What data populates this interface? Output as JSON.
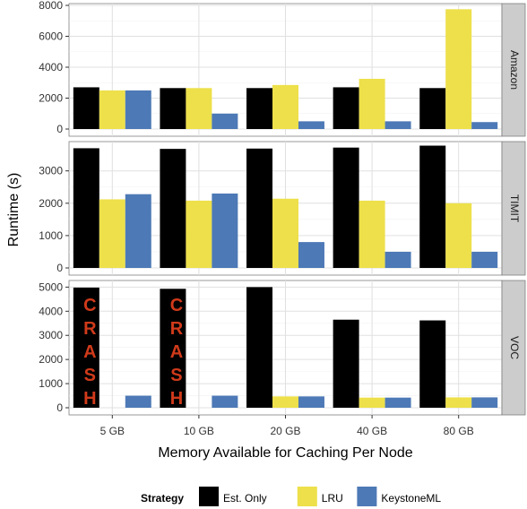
{
  "chart_data": {
    "type": "bar",
    "facet": "vertical",
    "xlabel": "Memory Available for Caching Per Node",
    "ylabel": "Runtime (s)",
    "categories": [
      "5 GB",
      "10 GB",
      "20 GB",
      "40 GB",
      "80 GB"
    ],
    "legend": {
      "title": "Strategy",
      "position": "bottom",
      "entries": [
        "Est. Only",
        "LRU",
        "KeystoneML"
      ]
    },
    "colors": {
      "Est. Only": "#000000",
      "LRU": "#ede04a",
      "KeystoneML": "#4d79b6",
      "panel_bg": "#ffffff",
      "strip_bg": "#cccccc",
      "grid": "#e0e0e0",
      "crash": "#d03a1a"
    },
    "grid": true,
    "panels": [
      {
        "label": "Amazon",
        "ylim": [
          0,
          8000
        ],
        "yticks": [
          0,
          2000,
          4000,
          6000,
          8000
        ],
        "series": [
          {
            "name": "Est. Only",
            "values": [
              2700,
              2650,
              2650,
              2700,
              2650
            ]
          },
          {
            "name": "LRU",
            "values": [
              2500,
              2650,
              2850,
              3250,
              7750
            ]
          },
          {
            "name": "KeystoneML",
            "values": [
              2500,
              1000,
              500,
              500,
              450
            ]
          }
        ],
        "annotations": []
      },
      {
        "label": "TIMIT",
        "ylim": [
          0,
          3850
        ],
        "yticks": [
          0,
          1000,
          2000,
          3000
        ],
        "series": [
          {
            "name": "Est. Only",
            "values": [
              3700,
              3680,
              3690,
              3720,
              3780
            ]
          },
          {
            "name": "LRU",
            "values": [
              2120,
              2080,
              2140,
              2080,
              2000
            ]
          },
          {
            "name": "KeystoneML",
            "values": [
              2280,
              2300,
              800,
              500,
              500
            ]
          }
        ],
        "annotations": []
      },
      {
        "label": "VOC",
        "ylim": [
          0,
          5200
        ],
        "yticks": [
          0,
          1000,
          2000,
          3000,
          4000,
          5000
        ],
        "series": [
          {
            "name": "Est. Only",
            "values": [
              4980,
              4930,
              5000,
              3650,
              3620
            ]
          },
          {
            "name": "LRU",
            "values": [
              null,
              null,
              470,
              420,
              430
            ]
          },
          {
            "name": "KeystoneML",
            "values": [
              500,
              500,
              470,
              420,
              430
            ]
          }
        ],
        "annotations": [
          {
            "category": "5 GB",
            "series": "LRU",
            "text": "CRASH"
          },
          {
            "category": "10 GB",
            "series": "LRU",
            "text": "CRASH"
          }
        ]
      }
    ]
  }
}
